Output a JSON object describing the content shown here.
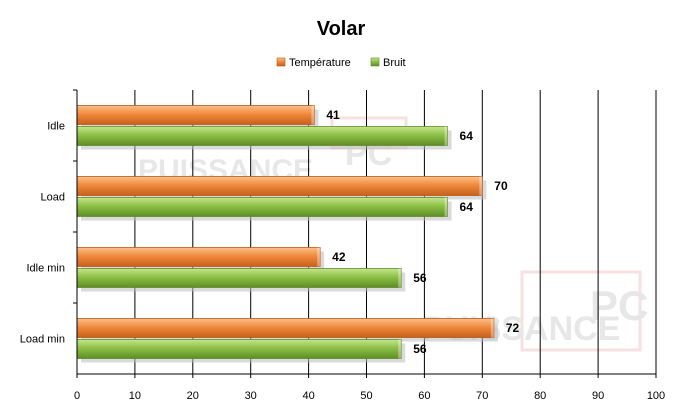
{
  "chart_data": {
    "type": "bar",
    "orientation": "horizontal",
    "title": "Volar",
    "categories": [
      "Idle",
      "Load",
      "Idle min",
      "Load min"
    ],
    "series": [
      {
        "name": "Température",
        "color": "#f08a3c",
        "values": [
          41,
          70,
          42,
          72
        ]
      },
      {
        "name": "Bruit",
        "color": "#8cc045",
        "values": [
          64,
          64,
          56,
          56
        ]
      }
    ],
    "xlim": [
      0,
      100
    ],
    "xticks": [
      "0",
      "10",
      "20",
      "30",
      "40",
      "50",
      "60",
      "70",
      "80",
      "90",
      "100"
    ],
    "grid": true,
    "legend_position": "top"
  },
  "watermark": "PUISSANCE PC"
}
